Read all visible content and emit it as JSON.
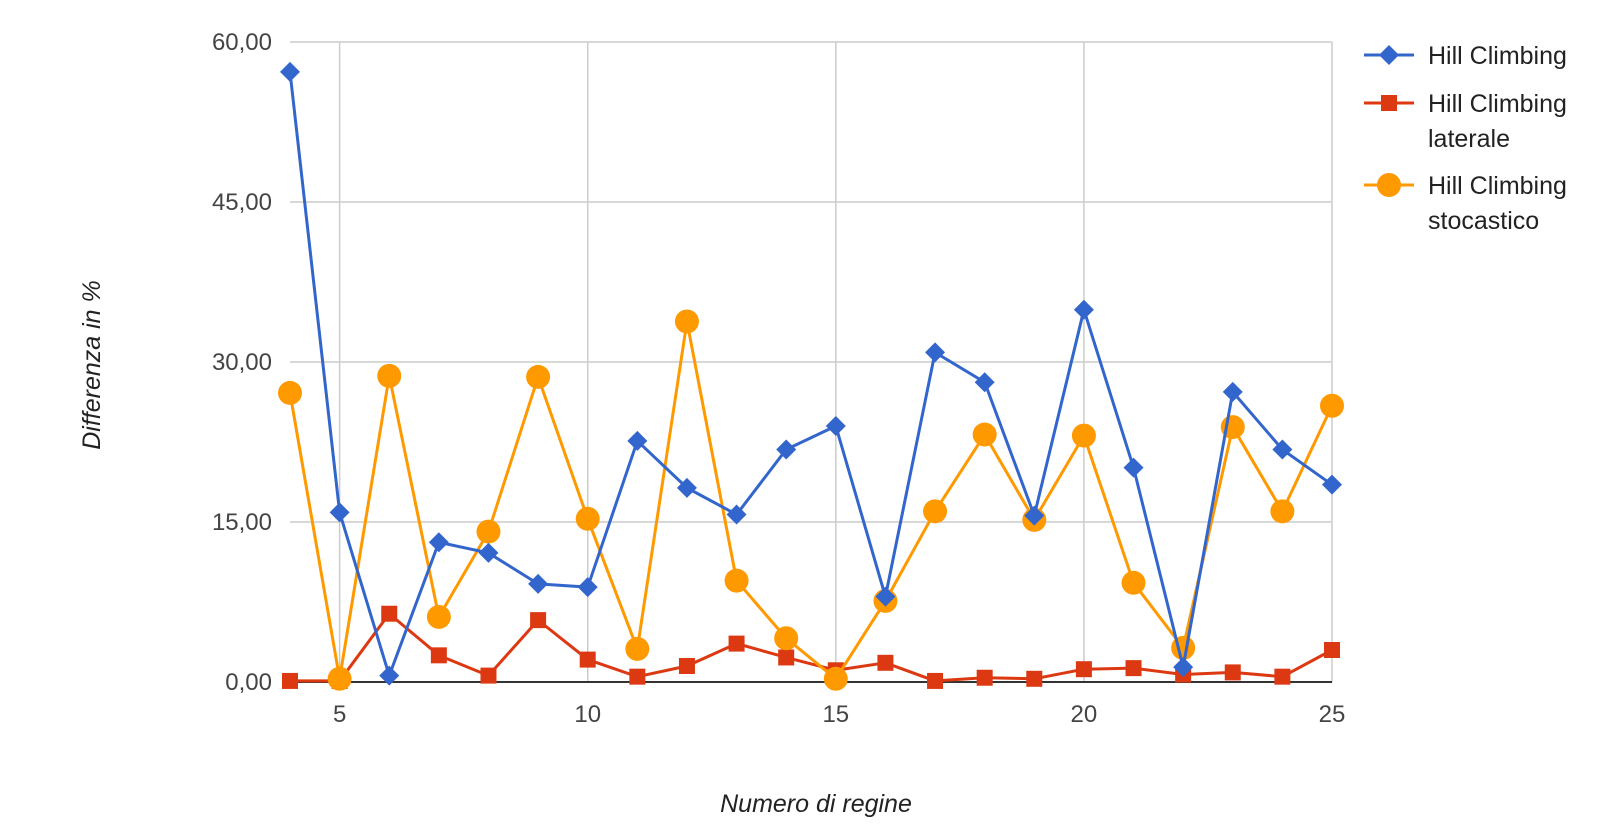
{
  "chart_data": {
    "type": "line",
    "title": "",
    "xlabel": "Numero di regine",
    "ylabel": "Differenza in %",
    "x": [
      4,
      5,
      6,
      7,
      8,
      9,
      10,
      11,
      12,
      13,
      14,
      15,
      16,
      17,
      18,
      19,
      20,
      21,
      22,
      23,
      24,
      25
    ],
    "xticks": [
      "5",
      "10",
      "15",
      "20",
      "25"
    ],
    "yticks": [
      "0,00",
      "15,00",
      "30,00",
      "45,00",
      "60,00"
    ],
    "xlim": [
      4,
      25
    ],
    "ylim": [
      0,
      60
    ],
    "grid": true,
    "legend_position": "top-right",
    "series": [
      {
        "name": "Hill Climbing",
        "color": "#3366cc",
        "marker": "diamond",
        "values": [
          57.2,
          15.9,
          0.6,
          13.1,
          12.1,
          9.2,
          8.9,
          22.6,
          18.2,
          15.7,
          21.8,
          24.0,
          8.0,
          30.9,
          28.1,
          15.6,
          34.9,
          20.1,
          1.4,
          27.2,
          21.8,
          18.5
        ]
      },
      {
        "name": "Hill Climbing laterale",
        "color": "#dc3912",
        "marker": "square",
        "values": [
          0.1,
          0.1,
          6.4,
          2.5,
          0.6,
          5.8,
          2.1,
          0.5,
          1.5,
          3.6,
          2.3,
          1.1,
          1.8,
          0.1,
          0.4,
          0.3,
          1.2,
          1.3,
          0.7,
          0.9,
          0.5,
          3.0
        ]
      },
      {
        "name": "Hill Climbing stocastico",
        "color": "#ff9900",
        "marker": "circle",
        "values": [
          27.1,
          0.3,
          28.7,
          6.1,
          14.1,
          28.6,
          15.3,
          3.1,
          33.8,
          9.5,
          4.1,
          0.3,
          7.6,
          16.0,
          23.2,
          15.2,
          23.1,
          9.3,
          3.2,
          23.9,
          16.0,
          25.9
        ]
      }
    ],
    "legend": [
      {
        "lines": [
          "Hill Climbing"
        ]
      },
      {
        "lines": [
          "Hill Climbing",
          "laterale"
        ]
      },
      {
        "lines": [
          "Hill Climbing",
          "stocastico"
        ]
      }
    ]
  }
}
